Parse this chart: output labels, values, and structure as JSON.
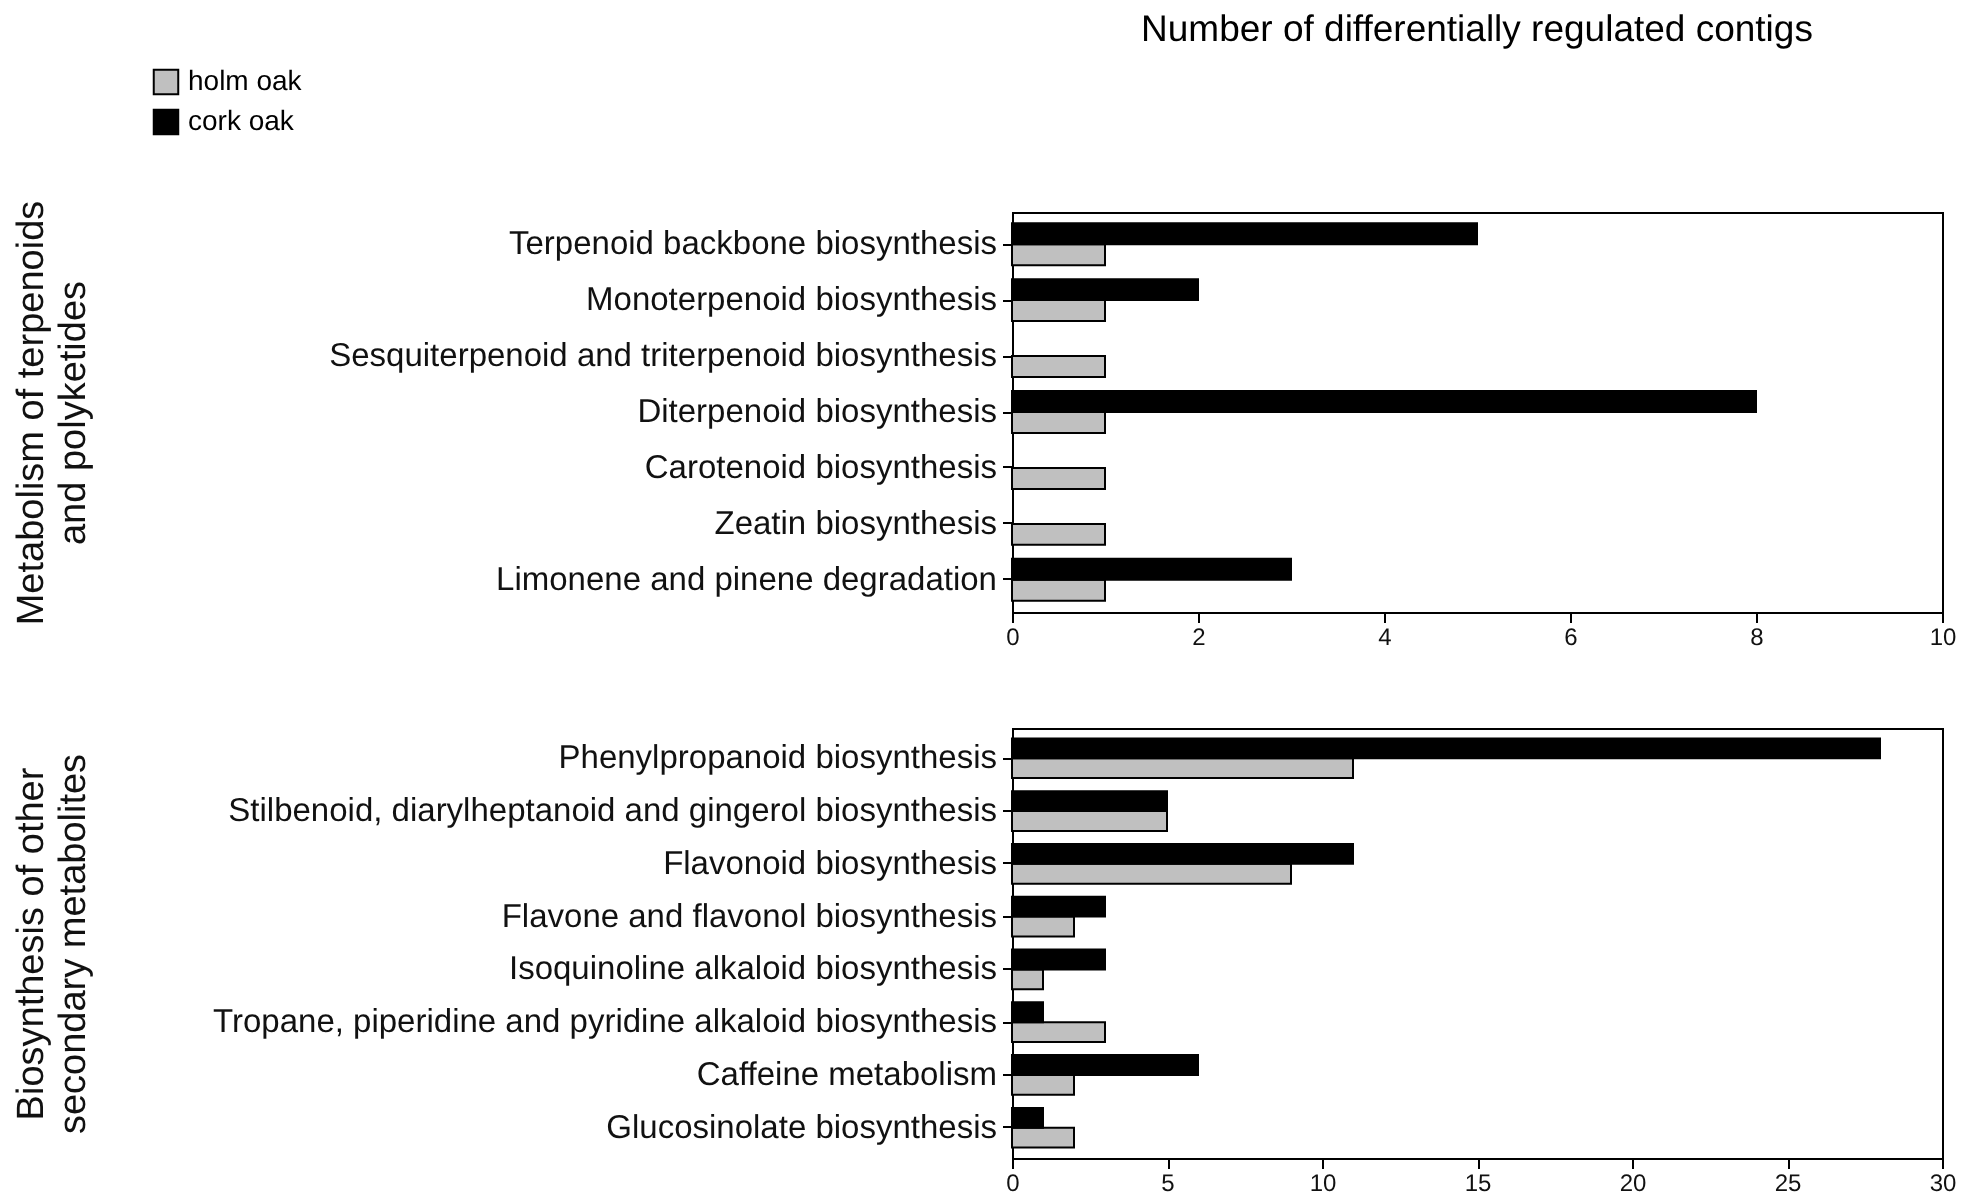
{
  "chart_data": [
    {
      "type": "bar",
      "orientation": "horizontal",
      "title": "Number of differentially regulated contigs",
      "ylabel": "Metabolism of terpenoids\nand polyketides",
      "legend": "top left",
      "grid": false,
      "categories": [
        "Terpenoid backbone biosynthesis",
        "Monoterpenoid biosynthesis",
        "Sesquiterpenoid and triterpenoid biosynthesis",
        "Diterpenoid biosynthesis",
        "Carotenoid biosynthesis",
        "Zeatin biosynthesis",
        "Limonene and pinene degradation"
      ],
      "series": [
        {
          "name": "holm oak",
          "color": "#c0c0c0",
          "values": [
            1,
            1,
            1,
            1,
            1,
            1,
            1
          ]
        },
        {
          "name": "cork oak",
          "color": "#000000",
          "values": [
            5,
            2,
            null,
            8,
            null,
            null,
            3
          ]
        }
      ],
      "xlim": [
        0,
        10
      ],
      "xticks": [
        0,
        2,
        4,
        6,
        8,
        10
      ]
    },
    {
      "type": "bar",
      "orientation": "horizontal",
      "ylabel": "Biosynthesis of other\nsecondary metabolites",
      "legend": false,
      "grid": false,
      "categories": [
        "Phenylpropanoid biosynthesis",
        "Stilbenoid, diarylheptanoid and gingerol biosynthesis",
        "Flavonoid biosynthesis",
        "Flavone and flavonol biosynthesis",
        "Isoquinoline alkaloid biosynthesis",
        "Tropane, piperidine and pyridine alkaloid biosynthesis",
        "Caffeine metabolism",
        "Glucosinolate biosynthesis"
      ],
      "series": [
        {
          "color": "#c0c0c0",
          "values": [
            11,
            5,
            9,
            2,
            1,
            3,
            2,
            2
          ]
        },
        {
          "color": "#000000",
          "values": [
            28,
            5,
            11,
            3,
            3,
            1,
            6,
            1
          ]
        }
      ],
      "xlim": [
        0,
        30
      ],
      "xticks": [
        0,
        5,
        10,
        15,
        20,
        25,
        30
      ]
    }
  ]
}
